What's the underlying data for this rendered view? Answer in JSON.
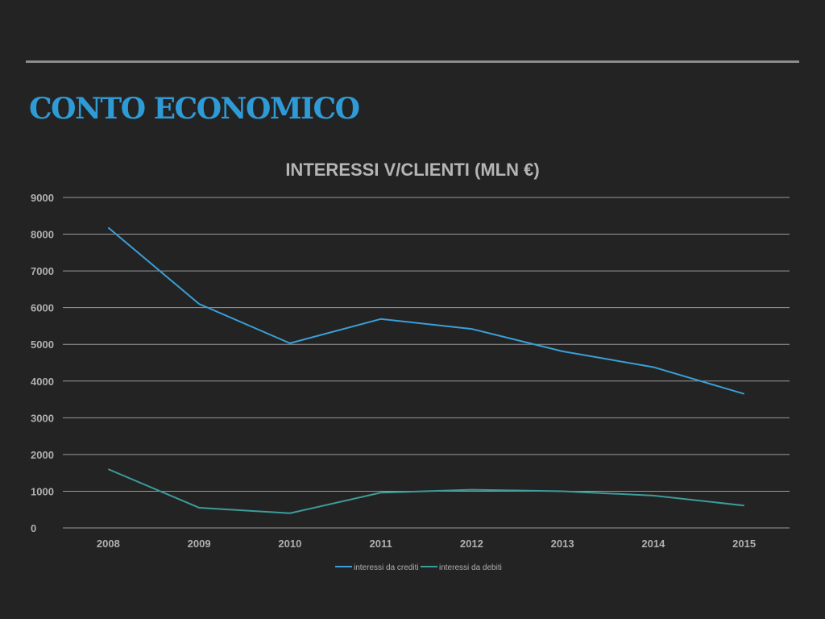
{
  "slide": {
    "title": "CONTO ECONOMICO"
  },
  "colors": {
    "accent": "#2f9bd6",
    "series_crediti": "#3a9fd8",
    "series_debiti": "#3d9c9a",
    "grid": "#9a9a9a",
    "text": "#b0b0b0"
  },
  "chart_data": {
    "type": "line",
    "title": "INTERESSI V/CLIENTI (MLN €)",
    "xlabel": "",
    "ylabel": "",
    "categories": [
      "2008",
      "2009",
      "2010",
      "2011",
      "2012",
      "2013",
      "2014",
      "2015"
    ],
    "ylim": [
      0,
      9000
    ],
    "yticks": [
      0,
      1000,
      2000,
      3000,
      4000,
      5000,
      6000,
      7000,
      8000,
      9000
    ],
    "grid": true,
    "legend_position": "bottom",
    "series": [
      {
        "name": "interessi da crediti",
        "values": [
          8180,
          6100,
          5030,
          5690,
          5420,
          4810,
          4380,
          3650
        ]
      },
      {
        "name": "interessi da debiti",
        "values": [
          1600,
          550,
          400,
          960,
          1040,
          1000,
          880,
          610
        ]
      }
    ]
  }
}
